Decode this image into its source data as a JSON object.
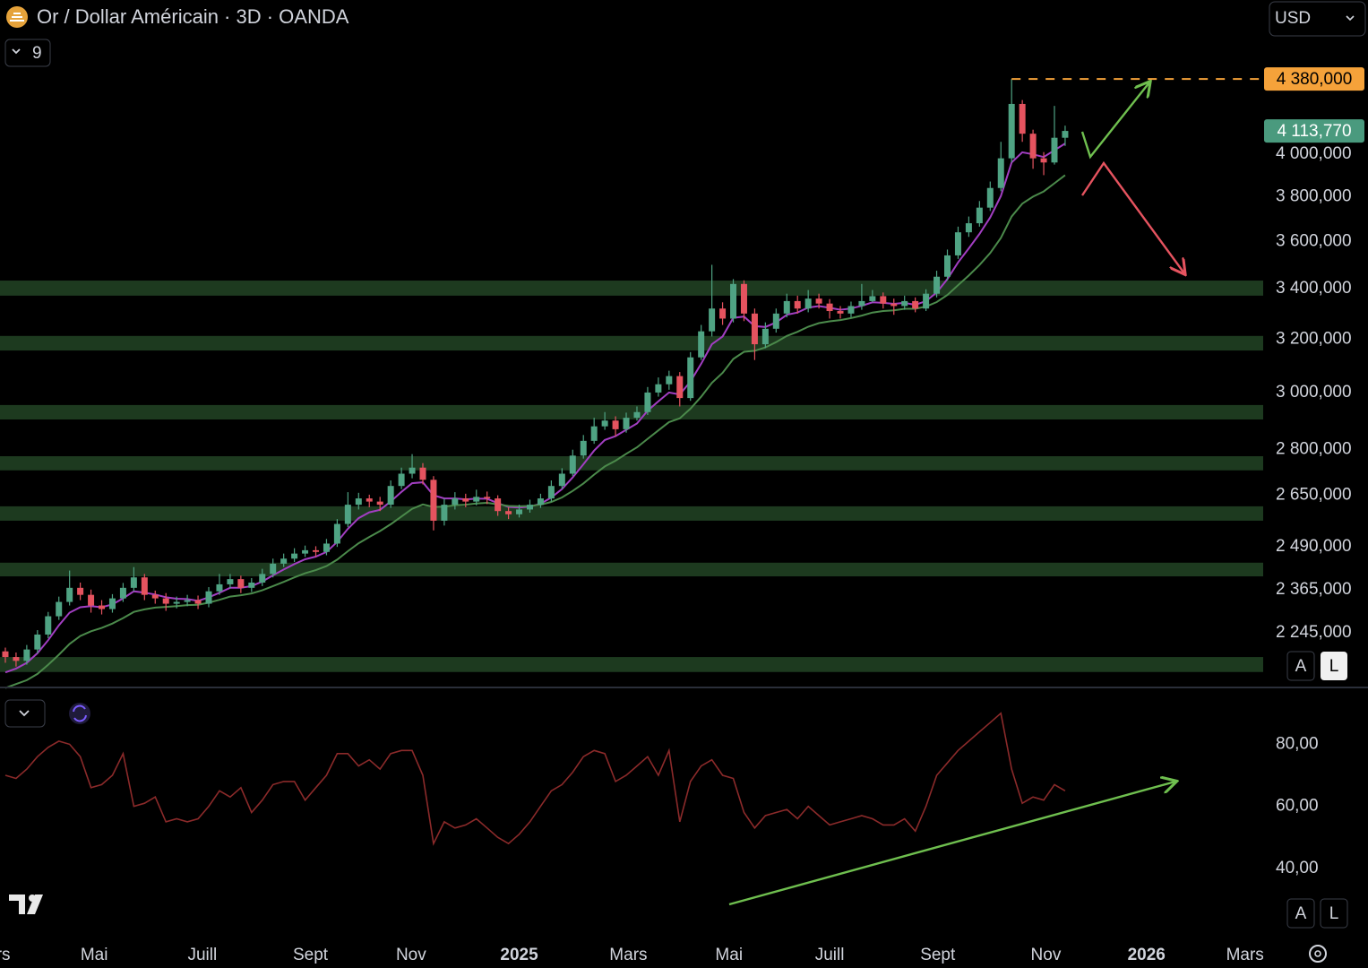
{
  "chart_data": {
    "type": "candlestick",
    "title": "Or / Dollar Américain · 3D · OANDA",
    "currency": "USD",
    "indicator_count": 9,
    "scale_buttons": [
      "A",
      "L"
    ],
    "log_scale": true,
    "ylim": [
      2106,
      4818
    ],
    "yticks": [
      {
        "value": 4000,
        "label": "4 000,000"
      },
      {
        "value": 3800,
        "label": "3 800,000"
      },
      {
        "value": 3600,
        "label": "3 600,000"
      },
      {
        "value": 3400,
        "label": "3 400,000"
      },
      {
        "value": 3200,
        "label": "3 200,000"
      },
      {
        "value": 3000,
        "label": "3 000,000"
      },
      {
        "value": 2800,
        "label": "2 800,000"
      },
      {
        "value": 2650,
        "label": "2 650,000"
      },
      {
        "value": 2490,
        "label": "2 490,000"
      },
      {
        "value": 2365,
        "label": "2 365,000"
      },
      {
        "value": 2245,
        "label": "2 245,000"
      }
    ],
    "xlim": [
      -0.5,
      117.5
    ],
    "xticks": [
      {
        "value": -1.3,
        "label": "Mars"
      },
      {
        "value": 8.3,
        "label": "Mai"
      },
      {
        "value": 18.4,
        "label": "Juill"
      },
      {
        "value": 28.5,
        "label": "Sept"
      },
      {
        "value": 37.9,
        "label": "Nov"
      },
      {
        "value": 48.0,
        "label": "2025"
      },
      {
        "value": 58.2,
        "label": "Mars"
      },
      {
        "value": 67.6,
        "label": "Mai"
      },
      {
        "value": 77.0,
        "label": "Juill"
      },
      {
        "value": 87.1,
        "label": "Sept"
      },
      {
        "value": 97.2,
        "label": "Nov"
      },
      {
        "value": 106.6,
        "label": "2026"
      },
      {
        "value": 115.8,
        "label": "Mars"
      }
    ],
    "up_color": "#4fa383",
    "down_color": "#e5535f",
    "open": [
      2195,
      2180,
      2170,
      2200,
      2240,
      2290,
      2330,
      2370,
      2350,
      2320,
      2310,
      2340,
      2370,
      2400,
      2350,
      2340,
      2325,
      2330,
      2335,
      2325,
      2360,
      2380,
      2395,
      2370,
      2385,
      2410,
      2440,
      2455,
      2470,
      2480,
      2475,
      2500,
      2560,
      2620,
      2640,
      2630,
      2620,
      2680,
      2720,
      2740,
      2700,
      2570,
      2620,
      2640,
      2630,
      2645,
      2640,
      2600,
      2590,
      2605,
      2620,
      2640,
      2680,
      2720,
      2780,
      2830,
      2880,
      2900,
      2870,
      2910,
      2930,
      3000,
      3030,
      3060,
      2980,
      3130,
      3230,
      3320,
      3280,
      3420,
      3300,
      3180,
      3240,
      3300,
      3350,
      3320,
      3360,
      3340,
      3310,
      3300,
      3330,
      3350,
      3370,
      3340,
      3330,
      3350,
      3320,
      3380,
      3450,
      3540,
      3640,
      3680,
      3750,
      3840,
      3980,
      4250,
      4100,
      3980,
      3960,
      4080
    ],
    "high": [
      2205,
      2192,
      2212,
      2252,
      2302,
      2345,
      2420,
      2385,
      2365,
      2335,
      2352,
      2384,
      2430,
      2410,
      2362,
      2355,
      2345,
      2350,
      2348,
      2372,
      2410,
      2410,
      2405,
      2398,
      2425,
      2455,
      2470,
      2486,
      2494,
      2492,
      2514,
      2575,
      2660,
      2658,
      2652,
      2645,
      2698,
      2740,
      2785,
      2755,
      2712,
      2640,
      2660,
      2655,
      2668,
      2662,
      2650,
      2612,
      2620,
      2636,
      2655,
      2698,
      2738,
      2800,
      2850,
      2910,
      2930,
      2915,
      2928,
      2950,
      3020,
      3055,
      3080,
      3075,
      3150,
      3255,
      3500,
      3345,
      3440,
      3435,
      3320,
      3265,
      3320,
      3380,
      3372,
      3395,
      3380,
      3358,
      3330,
      3348,
      3420,
      3395,
      3385,
      3360,
      3372,
      3365,
      3398,
      3475,
      3565,
      3665,
      3710,
      3780,
      3870,
      4060,
      4380,
      4270,
      4120,
      4010,
      4240,
      4140
    ],
    "low": [
      2165,
      2155,
      2160,
      2190,
      2230,
      2280,
      2320,
      2335,
      2300,
      2295,
      2300,
      2330,
      2360,
      2335,
      2325,
      2305,
      2312,
      2318,
      2310,
      2315,
      2350,
      2368,
      2355,
      2358,
      2375,
      2400,
      2430,
      2445,
      2460,
      2460,
      2465,
      2490,
      2550,
      2605,
      2612,
      2600,
      2610,
      2670,
      2705,
      2685,
      2540,
      2555,
      2605,
      2612,
      2618,
      2622,
      2585,
      2575,
      2580,
      2595,
      2610,
      2630,
      2670,
      2712,
      2770,
      2820,
      2868,
      2845,
      2858,
      2900,
      2920,
      2985,
      3010,
      2950,
      2970,
      3120,
      3210,
      3255,
      3265,
      3270,
      3120,
      3165,
      3225,
      3285,
      3300,
      3305,
      3320,
      3280,
      3280,
      3285,
      3315,
      3345,
      3320,
      3295,
      3315,
      3305,
      3310,
      3365,
      3435,
      3525,
      3620,
      3665,
      3735,
      3825,
      3960,
      4060,
      3930,
      3900,
      3950,
      4040
    ],
    "close": [
      2180,
      2170,
      2200,
      2240,
      2290,
      2330,
      2370,
      2350,
      2320,
      2310,
      2340,
      2370,
      2400,
      2350,
      2340,
      2325,
      2330,
      2335,
      2325,
      2360,
      2380,
      2395,
      2370,
      2385,
      2410,
      2440,
      2455,
      2470,
      2480,
      2475,
      2500,
      2560,
      2620,
      2640,
      2630,
      2620,
      2680,
      2720,
      2740,
      2700,
      2570,
      2620,
      2640,
      2630,
      2645,
      2640,
      2600,
      2590,
      2605,
      2620,
      2640,
      2680,
      2720,
      2780,
      2830,
      2880,
      2900,
      2870,
      2910,
      2930,
      3000,
      3030,
      3060,
      2980,
      3130,
      3230,
      3320,
      3280,
      3420,
      3300,
      3180,
      3240,
      3300,
      3350,
      3320,
      3360,
      3340,
      3310,
      3300,
      3330,
      3350,
      3370,
      3340,
      3330,
      3350,
      3320,
      3380,
      3450,
      3540,
      3640,
      3680,
      3750,
      3840,
      3980,
      4250,
      4100,
      3980,
      3960,
      4080,
      4113.77
    ],
    "moving_averages": [
      {
        "color": "#a23ec2",
        "values": [
          2140,
          2150,
          2165,
          2190,
          2225,
          2265,
          2300,
          2315,
          2318,
          2315,
          2323,
          2340,
          2360,
          2356,
          2351,
          2343,
          2339,
          2338,
          2333,
          2343,
          2356,
          2370,
          2370,
          2375,
          2388,
          2406,
          2423,
          2439,
          2453,
          2461,
          2475,
          2505,
          2545,
          2578,
          2596,
          2604,
          2630,
          2661,
          2689,
          2692,
          2650,
          2640,
          2640,
          2637,
          2639,
          2639,
          2625,
          2613,
          2611,
          2614,
          2623,
          2643,
          2670,
          2708,
          2751,
          2797,
          2833,
          2846,
          2868,
          2890,
          2935,
          2968,
          3000,
          2993,
          3040,
          3106,
          3180,
          3210,
          3283,
          3288,
          3250,
          3247,
          3265,
          3295,
          3304,
          3324,
          3330,
          3323,
          3315,
          3320,
          3331,
          3345,
          3343,
          3339,
          3343,
          3335,
          3350,
          3385,
          3440,
          3510,
          3570,
          3633,
          3706,
          3803,
          3960,
          4009,
          3999,
          3986,
          4019,
          4052
        ]
      },
      {
        "color": "#4b8a4b",
        "values": [
          2100,
          2110,
          2120,
          2136,
          2160,
          2186,
          2215,
          2236,
          2249,
          2258,
          2270,
          2285,
          2302,
          2309,
          2314,
          2316,
          2318,
          2321,
          2322,
          2328,
          2336,
          2345,
          2349,
          2354,
          2363,
          2375,
          2387,
          2400,
          2412,
          2421,
          2433,
          2452,
          2477,
          2501,
          2520,
          2538,
          2559,
          2583,
          2607,
          2621,
          2613,
          2614,
          2618,
          2620,
          2624,
          2626,
          2621,
          2616,
          2615,
          2616,
          2620,
          2629,
          2643,
          2664,
          2688,
          2717,
          2744,
          2763,
          2786,
          2808,
          2837,
          2866,
          2895,
          2908,
          2942,
          2985,
          3035,
          3072,
          3124,
          3151,
          3155,
          3168,
          3188,
          3212,
          3228,
          3248,
          3262,
          3269,
          3274,
          3282,
          3292,
          3304,
          3310,
          3313,
          3319,
          3319,
          3328,
          3346,
          3375,
          3415,
          3455,
          3499,
          3550,
          3615,
          3710,
          3768,
          3800,
          3824,
          3862,
          3900
        ]
      }
    ],
    "zone_color": "#1d3a1f",
    "zones": [
      {
        "from": 3372,
        "to": 3434
      },
      {
        "from": 3156,
        "to": 3212
      },
      {
        "from": 2904,
        "to": 2955
      },
      {
        "from": 2731,
        "to": 2778
      },
      {
        "from": 2570,
        "to": 2615
      },
      {
        "from": 2403,
        "to": 2443
      },
      {
        "from": 2141,
        "to": 2180
      }
    ],
    "price_lines": [
      {
        "value": 4380,
        "label": "4 380,000",
        "color": "#f5a23a",
        "dashed": true
      },
      {
        "value": 4113.77,
        "label": "4 113,770",
        "color": "#4a9a7e",
        "dashed": false
      }
    ],
    "indicator": {
      "type": "line",
      "color": "#8b2a2a",
      "ylim": [
        18,
        96
      ],
      "yticks": [
        {
          "value": 80,
          "label": "80,00"
        },
        {
          "value": 60,
          "label": "60,00"
        },
        {
          "value": 40,
          "label": "40,00"
        }
      ],
      "values": [
        70,
        69,
        72,
        76,
        79,
        81,
        80,
        76,
        66,
        67,
        70,
        77,
        60,
        61,
        63,
        55,
        56,
        55,
        56,
        60,
        65,
        63,
        66,
        58,
        62,
        67,
        68,
        68,
        62,
        66,
        70,
        77,
        77,
        73,
        75,
        72,
        77,
        78,
        78,
        70,
        48,
        55,
        53,
        54,
        56,
        53,
        50,
        48,
        51,
        55,
        60,
        65,
        67,
        71,
        76,
        78,
        77,
        68,
        70,
        73,
        76,
        70,
        78,
        55,
        68,
        73,
        75,
        70,
        69,
        58,
        53,
        57,
        58,
        59,
        56,
        60,
        57,
        54,
        55,
        56,
        57,
        56,
        54,
        54,
        56,
        52,
        60,
        70,
        74,
        78,
        81,
        84,
        87,
        90,
        72,
        61,
        63,
        62,
        67,
        65
      ]
    }
  }
}
